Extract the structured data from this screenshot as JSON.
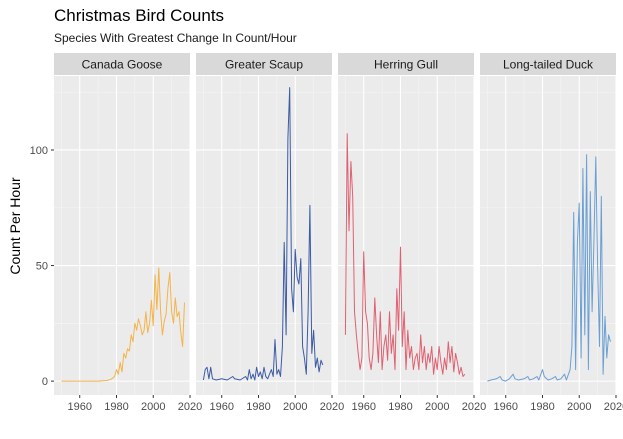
{
  "chart_data": {
    "type": "line",
    "title": "Christmas Bird Counts",
    "subtitle": "Species With Greatest Change In Count/Hour",
    "ylabel": "Count Per Hour",
    "xlabel": "",
    "xlim": [
      1946,
      2020
    ],
    "ylim": [
      -6,
      132
    ],
    "x_ticks": [
      1960,
      1980,
      2000,
      2020
    ],
    "x_tick_labels": [
      "1960",
      "1980",
      "2000",
      "2020"
    ],
    "y_ticks": [
      0,
      50,
      100
    ],
    "y_tick_labels": [
      "0",
      "50",
      "100"
    ],
    "grid": true,
    "legend": "none",
    "facets": [
      {
        "name": "Canada Goose",
        "color": "#f5b34a",
        "points": [
          [
            1950,
            0
          ],
          [
            1955,
            0
          ],
          [
            1960,
            0
          ],
          [
            1965,
            0
          ],
          [
            1970,
            0
          ],
          [
            1975,
            0.3
          ],
          [
            1977,
            0.8
          ],
          [
            1979,
            2
          ],
          [
            1980,
            5
          ],
          [
            1981,
            3
          ],
          [
            1982,
            8
          ],
          [
            1983,
            4
          ],
          [
            1984,
            12
          ],
          [
            1985,
            10
          ],
          [
            1986,
            14
          ],
          [
            1987,
            13
          ],
          [
            1988,
            20
          ],
          [
            1989,
            17
          ],
          [
            1990,
            25
          ],
          [
            1991,
            22
          ],
          [
            1992,
            27
          ],
          [
            1993,
            24
          ],
          [
            1994,
            20
          ],
          [
            1995,
            22
          ],
          [
            1996,
            30
          ],
          [
            1997,
            21
          ],
          [
            1998,
            25
          ],
          [
            1999,
            35
          ],
          [
            2000,
            24
          ],
          [
            2001,
            46
          ],
          [
            2002,
            31
          ],
          [
            2003,
            49
          ],
          [
            2004,
            30
          ],
          [
            2005,
            20
          ],
          [
            2006,
            26
          ],
          [
            2007,
            29
          ],
          [
            2008,
            40
          ],
          [
            2009,
            47
          ],
          [
            2010,
            30
          ],
          [
            2011,
            25
          ],
          [
            2012,
            36
          ],
          [
            2013,
            28
          ],
          [
            2014,
            30
          ],
          [
            2015,
            21
          ],
          [
            2016,
            15
          ],
          [
            2017,
            34
          ]
        ]
      },
      {
        "name": "Greater Scaup",
        "color": "#3b5ba5",
        "points": [
          [
            1950,
            0.5
          ],
          [
            1951,
            5
          ],
          [
            1952,
            6
          ],
          [
            1953,
            1
          ],
          [
            1954,
            6
          ],
          [
            1955,
            1
          ],
          [
            1957,
            0.5
          ],
          [
            1960,
            1
          ],
          [
            1963,
            0.5
          ],
          [
            1966,
            2
          ],
          [
            1967,
            1
          ],
          [
            1970,
            0.5
          ],
          [
            1973,
            2
          ],
          [
            1974,
            0.5
          ],
          [
            1975,
            5
          ],
          [
            1976,
            1
          ],
          [
            1977,
            3
          ],
          [
            1978,
            0.5
          ],
          [
            1979,
            6
          ],
          [
            1980,
            2
          ],
          [
            1981,
            4
          ],
          [
            1982,
            1
          ],
          [
            1983,
            6
          ],
          [
            1984,
            2
          ],
          [
            1985,
            1
          ],
          [
            1986,
            3
          ],
          [
            1987,
            5
          ],
          [
            1988,
            2
          ],
          [
            1989,
            18
          ],
          [
            1990,
            3
          ],
          [
            1991,
            5
          ],
          [
            1992,
            2
          ],
          [
            1993,
            15
          ],
          [
            1994,
            60
          ],
          [
            1995,
            20
          ],
          [
            1996,
            105
          ],
          [
            1997,
            127
          ],
          [
            1998,
            40
          ],
          [
            1999,
            30
          ],
          [
            2000,
            57
          ],
          [
            2001,
            45
          ],
          [
            2002,
            42
          ],
          [
            2003,
            53
          ],
          [
            2004,
            15
          ],
          [
            2005,
            10
          ],
          [
            2006,
            3
          ],
          [
            2007,
            30
          ],
          [
            2008,
            76
          ],
          [
            2009,
            12
          ],
          [
            2010,
            22
          ],
          [
            2011,
            6
          ],
          [
            2012,
            10
          ],
          [
            2013,
            4
          ],
          [
            2014,
            9
          ],
          [
            2015,
            7
          ]
        ]
      },
      {
        "name": "Herring Gull",
        "color": "#e06070",
        "points": [
          [
            1950,
            20
          ],
          [
            1951,
            107
          ],
          [
            1952,
            65
          ],
          [
            1953,
            95
          ],
          [
            1954,
            80
          ],
          [
            1955,
            30
          ],
          [
            1956,
            20
          ],
          [
            1957,
            12
          ],
          [
            1958,
            5
          ],
          [
            1959,
            10
          ],
          [
            1960,
            56
          ],
          [
            1961,
            30
          ],
          [
            1962,
            25
          ],
          [
            1963,
            10
          ],
          [
            1964,
            5
          ],
          [
            1965,
            12
          ],
          [
            1966,
            36
          ],
          [
            1967,
            20
          ],
          [
            1968,
            8
          ],
          [
            1969,
            30
          ],
          [
            1970,
            5
          ],
          [
            1971,
            15
          ],
          [
            1972,
            20
          ],
          [
            1973,
            9
          ],
          [
            1974,
            30
          ],
          [
            1975,
            12
          ],
          [
            1976,
            20
          ],
          [
            1977,
            5
          ],
          [
            1978,
            40
          ],
          [
            1979,
            22
          ],
          [
            1980,
            58
          ],
          [
            1981,
            15
          ],
          [
            1982,
            30
          ],
          [
            1983,
            5
          ],
          [
            1984,
            22
          ],
          [
            1985,
            10
          ],
          [
            1986,
            15
          ],
          [
            1987,
            5
          ],
          [
            1988,
            10
          ],
          [
            1989,
            12
          ],
          [
            1990,
            5
          ],
          [
            1991,
            20
          ],
          [
            1992,
            8
          ],
          [
            1993,
            15
          ],
          [
            1994,
            5
          ],
          [
            1995,
            12
          ],
          [
            1996,
            8
          ],
          [
            1997,
            15
          ],
          [
            1998,
            3
          ],
          [
            1999,
            10
          ],
          [
            2000,
            5
          ],
          [
            2001,
            15
          ],
          [
            2002,
            8
          ],
          [
            2003,
            3
          ],
          [
            2004,
            10
          ],
          [
            2005,
            5
          ],
          [
            2006,
            17
          ],
          [
            2007,
            8
          ],
          [
            2008,
            15
          ],
          [
            2009,
            4
          ],
          [
            2010,
            12
          ],
          [
            2011,
            8
          ],
          [
            2012,
            3
          ],
          [
            2013,
            6
          ],
          [
            2014,
            2
          ],
          [
            2015,
            3
          ]
        ]
      },
      {
        "name": "Long-tailed Duck",
        "color": "#6b9fd4",
        "points": [
          [
            1950,
            0
          ],
          [
            1952,
            0.5
          ],
          [
            1955,
            1
          ],
          [
            1957,
            2
          ],
          [
            1958,
            0.5
          ],
          [
            1960,
            0
          ],
          [
            1962,
            1
          ],
          [
            1964,
            3
          ],
          [
            1965,
            1
          ],
          [
            1967,
            0.5
          ],
          [
            1970,
            1
          ],
          [
            1972,
            2
          ],
          [
            1973,
            0.5
          ],
          [
            1975,
            1
          ],
          [
            1977,
            2
          ],
          [
            1978,
            0.5
          ],
          [
            1980,
            5
          ],
          [
            1981,
            2
          ],
          [
            1983,
            0.5
          ],
          [
            1985,
            1
          ],
          [
            1987,
            2
          ],
          [
            1988,
            0.5
          ],
          [
            1990,
            1
          ],
          [
            1992,
            3
          ],
          [
            1993,
            0.5
          ],
          [
            1995,
            5
          ],
          [
            1996,
            15
          ],
          [
            1997,
            73
          ],
          [
            1998,
            5
          ],
          [
            1999,
            60
          ],
          [
            2000,
            77
          ],
          [
            2001,
            10
          ],
          [
            2002,
            92
          ],
          [
            2003,
            20
          ],
          [
            2004,
            98
          ],
          [
            2005,
            5
          ],
          [
            2006,
            82
          ],
          [
            2007,
            30
          ],
          [
            2008,
            60
          ],
          [
            2009,
            97
          ],
          [
            2010,
            50
          ],
          [
            2011,
            15
          ],
          [
            2012,
            80
          ],
          [
            2013,
            3
          ],
          [
            2014,
            28
          ],
          [
            2015,
            10
          ],
          [
            2016,
            20
          ],
          [
            2017,
            17
          ]
        ]
      }
    ]
  }
}
